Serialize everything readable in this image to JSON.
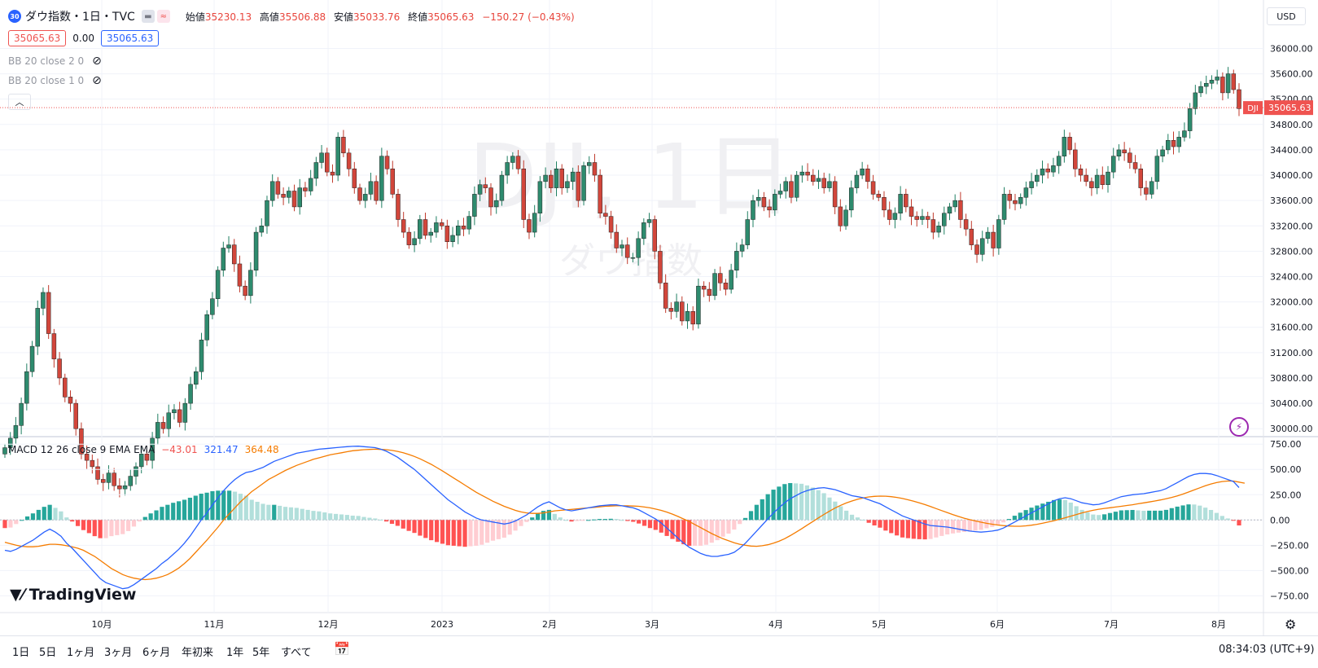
{
  "header": {
    "symbol_badge": "30",
    "title": "ダウ指数・1日・TVC",
    "ohlc": [
      {
        "label": "始値",
        "value": "35230.13"
      },
      {
        "label": "高値",
        "value": "35506.88"
      },
      {
        "label": "安値",
        "value": "35033.76"
      },
      {
        "label": "終値",
        "value": "35065.63"
      }
    ],
    "change": "−150.27 (−0.43%)",
    "currency": "USD"
  },
  "price_boxes": {
    "bid": "35065.63",
    "spread": "0.00",
    "ask": "35065.63"
  },
  "indicators": {
    "bb2": "BB 20 close 2 0",
    "bb1": "BB 20 close 1 0",
    "macd_label": "MACD 12 26 close 9 EMA EMA",
    "macd_hist": "−43.01",
    "macd_line": "321.47",
    "macd_signal": "364.48"
  },
  "watermark": {
    "ticker": "DJI, 1日",
    "name": "ダウ指数"
  },
  "last_price": {
    "tag": "DJI",
    "value": "35065.63"
  },
  "logo": "TradingView",
  "timeframes": [
    "1日",
    "5日",
    "1ヶ月",
    "3ヶ月",
    "6ヶ月",
    "年初来",
    "1年",
    "5年",
    "すべて"
  ],
  "clock": "08:34:03 (UTC+9)",
  "colors": {
    "up": "#26a69a",
    "down": "#ef5350",
    "up_dark": "#1f7f62",
    "down_dark": "#c0392b",
    "macd": "#2962ff",
    "signal": "#f57c00"
  },
  "chart_data": [
    {
      "type": "candlestick",
      "title": "ダウ指数・1日・TVC",
      "x_ticks": [
        "10月",
        "11月",
        "12月",
        "2023",
        "2月",
        "3月",
        "4月",
        "5月",
        "6月",
        "7月",
        "8月"
      ],
      "y_ticks": [
        "36000.00",
        "35600.00",
        "35200.00",
        "34800.00",
        "34400.00",
        "34000.00",
        "33600.00",
        "33200.00",
        "32800.00",
        "32400.00",
        "32000.00",
        "31600.00",
        "31200.00",
        "30800.00",
        "30400.00",
        "30000.00"
      ],
      "ylim": [
        29900,
        36250
      ],
      "close_series": [
        29700,
        29850,
        30050,
        30400,
        30900,
        31300,
        31900,
        32150,
        31500,
        31100,
        30800,
        30500,
        30400,
        30000,
        29600,
        29500,
        29400,
        29200,
        29150,
        29300,
        29100,
        29050,
        29100,
        29250,
        29400,
        29600,
        29500,
        29850,
        30100,
        30000,
        30250,
        30300,
        30100,
        30400,
        30700,
        30900,
        31400,
        31800,
        32050,
        32500,
        32850,
        32900,
        32600,
        32250,
        32100,
        32500,
        33100,
        33200,
        33600,
        33900,
        33700,
        33650,
        33750,
        33500,
        33800,
        33750,
        33950,
        34200,
        34350,
        34050,
        34000,
        34600,
        34350,
        34100,
        33800,
        33600,
        33700,
        33900,
        33600,
        34300,
        34100,
        33700,
        33300,
        33100,
        32900,
        33000,
        33300,
        33050,
        33100,
        33250,
        33200,
        32950,
        33050,
        33200,
        33150,
        33350,
        33700,
        33850,
        33800,
        33500,
        33600,
        34000,
        34200,
        34300,
        34100,
        33300,
        33100,
        33400,
        33900,
        34000,
        33800,
        34100,
        33800,
        33900,
        34050,
        33600,
        34150,
        34200,
        34000,
        33400,
        33350,
        33100,
        32850,
        32900,
        32700,
        32700,
        33000,
        33250,
        33300,
        32800,
        32300,
        31900,
        31850,
        32000,
        31700,
        31850,
        31650,
        32250,
        32200,
        32100,
        32450,
        32300,
        32200,
        32500,
        32800,
        32900,
        33300,
        33600,
        33650,
        33500,
        33450,
        33700,
        33750,
        33900,
        33650,
        34000,
        34050,
        34000,
        33900,
        33950,
        33800,
        33900,
        33500,
        33200,
        33450,
        33800,
        34000,
        34100,
        33900,
        33700,
        33650,
        33450,
        33300,
        33400,
        33700,
        33500,
        33350,
        33300,
        33350,
        33300,
        33100,
        33200,
        33400,
        33500,
        33600,
        33300,
        33150,
        32900,
        32750,
        33000,
        33100,
        32850,
        33300,
        33700,
        33600,
        33550,
        33650,
        33800,
        33900,
        34000,
        34100,
        34050,
        34150,
        34300,
        34600,
        34400,
        34100,
        34000,
        33900,
        33800,
        34000,
        33850,
        34050,
        34300,
        34400,
        34350,
        34200,
        34100,
        33800,
        33700,
        33900,
        34300,
        34400,
        34550,
        34450,
        34600,
        34700,
        35050,
        35300,
        35400,
        35450,
        35500,
        35550,
        35300,
        35600,
        35350,
        35050
      ],
      "volume_like_series": [],
      "series": [
        {
          "name": "MACD",
          "role": "macd_line",
          "values": [
            -300,
            -310,
            -290,
            -260,
            -230,
            -200,
            -160,
            -120,
            -90,
            -120,
            -160,
            -230,
            -280,
            -340,
            -400,
            -460,
            -520,
            -580,
            -620,
            -640,
            -660,
            -680,
            -670,
            -640,
            -600,
            -560,
            -520,
            -480,
            -430,
            -390,
            -340,
            -290,
            -230,
            -160,
            -80,
            0,
            70,
            150,
            220,
            290,
            350,
            400,
            440,
            470,
            480,
            500,
            520,
            550,
            580,
            600,
            620,
            640,
            660,
            670,
            680,
            690,
            700,
            705,
            710,
            715,
            720,
            725,
            728,
            730,
            725,
            720,
            715,
            700,
            680,
            650,
            620,
            580,
            540,
            500,
            450,
            400,
            350,
            300,
            250,
            200,
            160,
            120,
            80,
            50,
            20,
            0,
            -10,
            -20,
            -30,
            -40,
            -30,
            -10,
            20,
            50,
            90,
            130,
            160,
            180,
            150,
            120,
            100,
            90,
            100,
            110,
            120,
            130,
            140,
            145,
            150,
            150,
            140,
            130,
            120,
            100,
            70,
            40,
            10,
            -30,
            -80,
            -130,
            -180,
            -230,
            -270,
            -300,
            -330,
            -350,
            -360,
            -360,
            -350,
            -340,
            -320,
            -280,
            -230,
            -170,
            -110,
            -50,
            10,
            70,
            120,
            170,
            210,
            240,
            270,
            290,
            305,
            315,
            320,
            310,
            300,
            280,
            260,
            240,
            230,
            220,
            200,
            180,
            160,
            130,
            100,
            70,
            40,
            20,
            0,
            -20,
            -40,
            -55,
            -60,
            -65,
            -70,
            -80,
            -90,
            -100,
            -110,
            -115,
            -120,
            -115,
            -110,
            -100,
            -80,
            -50,
            -20,
            10,
            40,
            70,
            100,
            130,
            160,
            190,
            210,
            220,
            210,
            190,
            170,
            160,
            150,
            155,
            170,
            190,
            210,
            230,
            240,
            250,
            255,
            260,
            270,
            280,
            290,
            310,
            340,
            370,
            400,
            430,
            450,
            460,
            460,
            455,
            440,
            420,
            400,
            380,
            321
          ]
        },
        {
          "name": "Signal",
          "role": "signal_line",
          "values": [
            -220,
            -235,
            -250,
            -260,
            -265,
            -265,
            -260,
            -250,
            -240,
            -240,
            -245,
            -255,
            -265,
            -280,
            -300,
            -330,
            -360,
            -400,
            -440,
            -480,
            -510,
            -540,
            -560,
            -575,
            -585,
            -590,
            -585,
            -575,
            -560,
            -540,
            -510,
            -475,
            -430,
            -380,
            -320,
            -260,
            -200,
            -135,
            -70,
            0,
            60,
            120,
            180,
            230,
            280,
            320,
            360,
            400,
            430,
            460,
            490,
            515,
            540,
            560,
            580,
            600,
            615,
            630,
            645,
            655,
            665,
            675,
            685,
            690,
            695,
            698,
            700,
            698,
            695,
            688,
            678,
            665,
            648,
            628,
            605,
            578,
            550,
            518,
            485,
            450,
            415,
            380,
            345,
            310,
            275,
            245,
            215,
            185,
            160,
            135,
            115,
            95,
            80,
            70,
            65,
            65,
            70,
            80,
            90,
            95,
            100,
            105,
            110,
            115,
            120,
            125,
            130,
            135,
            138,
            140,
            140,
            140,
            138,
            135,
            128,
            120,
            108,
            95,
            78,
            58,
            35,
            10,
            -15,
            -45,
            -75,
            -105,
            -135,
            -160,
            -185,
            -205,
            -225,
            -240,
            -250,
            -258,
            -260,
            -255,
            -245,
            -230,
            -210,
            -185,
            -155,
            -122,
            -88,
            -52,
            -16,
            20,
            55,
            88,
            118,
            145,
            168,
            188,
            205,
            218,
            228,
            234,
            236,
            235,
            230,
            223,
            213,
            200,
            186,
            170,
            152,
            133,
            113,
            93,
            73,
            53,
            35,
            18,
            3,
            -10,
            -22,
            -33,
            -42,
            -50,
            -56,
            -60,
            -62,
            -62,
            -58,
            -52,
            -43,
            -32,
            -20,
            -7,
            7,
            22,
            38,
            54,
            70,
            84,
            96,
            106,
            114,
            121,
            128,
            135,
            143,
            151,
            160,
            169,
            178,
            188,
            198,
            210,
            223,
            238,
            256,
            276,
            297,
            318,
            338,
            356,
            370,
            380,
            385,
            385,
            375,
            364
          ]
        },
        {
          "name": "Histogram",
          "role": "histogram",
          "values": []
        }
      ],
      "macd_y_ticks": [
        "750.00",
        "500.00",
        "250.00",
        "0.00",
        "−250.00",
        "−500.00",
        "−750.00"
      ],
      "macd_ylim": [
        -900,
        800
      ]
    }
  ]
}
